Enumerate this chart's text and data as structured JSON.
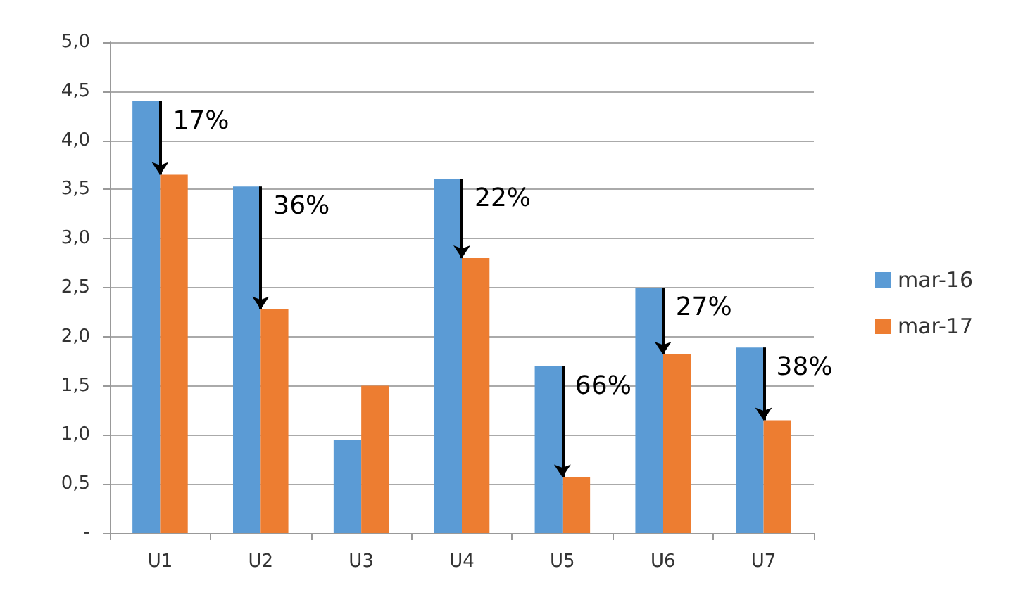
{
  "chart_data": {
    "type": "bar",
    "categories": [
      "U1",
      "U2",
      "U3",
      "U4",
      "U5",
      "U6",
      "U7"
    ],
    "series": [
      {
        "name": "mar-16",
        "color": "#5b9bd5",
        "values": [
          4.4,
          3.53,
          0.95,
          3.61,
          1.7,
          2.5,
          1.89
        ]
      },
      {
        "name": "mar-17",
        "color": "#ed7d31",
        "values": [
          3.65,
          2.28,
          1.5,
          2.8,
          0.57,
          1.82,
          1.15
        ]
      }
    ],
    "ylim": [
      0,
      5
    ],
    "yticks": [
      {
        "value": 0,
        "label": "-"
      },
      {
        "value": 0.5,
        "label": "0,5"
      },
      {
        "value": 1,
        "label": "1,0"
      },
      {
        "value": 1.5,
        "label": "1,5"
      },
      {
        "value": 2,
        "label": "2,0"
      },
      {
        "value": 2.5,
        "label": "2,5"
      },
      {
        "value": 3,
        "label": "3,0"
      },
      {
        "value": 3.5,
        "label": "3,5"
      },
      {
        "value": 4,
        "label": "4,0"
      },
      {
        "value": 4.5,
        "label": "4,5"
      },
      {
        "value": 5,
        "label": "5,0"
      }
    ],
    "grid": "y",
    "legend": "right",
    "annotations": [
      {
        "text": "17%",
        "x": "U1",
        "y": 3.65
      },
      {
        "text": "36%",
        "x": "U2",
        "y": 2.28
      },
      {
        "text": "22%",
        "x": "U4",
        "y": 2.8
      },
      {
        "text": "66%",
        "x": "U5",
        "y": 0.57
      },
      {
        "text": "27%",
        "x": "U6",
        "y": 1.82
      },
      {
        "text": "38%",
        "x": "U7",
        "y": 1.15
      }
    ]
  }
}
